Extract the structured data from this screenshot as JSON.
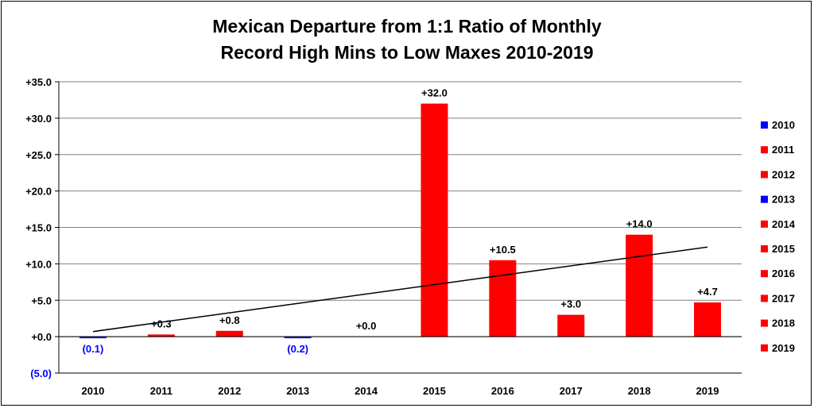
{
  "chart_data": {
    "type": "bar",
    "title_lines": [
      "Mexican Departure from 1:1 Ratio of Monthly",
      "Record High Mins to Low Maxes 2010-2019"
    ],
    "xlabel": "",
    "ylabel": "",
    "categories": [
      "2010",
      "2011",
      "2012",
      "2013",
      "2014",
      "2015",
      "2016",
      "2017",
      "2018",
      "2019"
    ],
    "values": [
      -0.1,
      0.3,
      0.8,
      -0.2,
      0.0,
      32.0,
      10.5,
      3.0,
      14.0,
      4.7
    ],
    "data_labels": [
      "(0.1)",
      "+0.3",
      "+0.8",
      "(0.2)",
      "+0.0",
      "+32.0",
      "+10.5",
      "+3.0",
      "+14.0",
      "+4.7"
    ],
    "ylim": [
      -5,
      35
    ],
    "y_ticks": [
      -5,
      0,
      5,
      10,
      15,
      20,
      25,
      30,
      35
    ],
    "y_tick_labels": [
      "(5.0)",
      "+0.0",
      "+5.0",
      "+10.0",
      "+15.0",
      "+20.0",
      "+25.0",
      "+30.0",
      "+35.0"
    ],
    "grid": true,
    "legend": {
      "position": "right",
      "entries": [
        "2010",
        "2011",
        "2012",
        "2013",
        "2014",
        "2015",
        "2016",
        "2017",
        "2018",
        "2019"
      ]
    },
    "trendline": {
      "type": "linear",
      "start": 0.7,
      "end": 12.3,
      "color": "#000000"
    },
    "colors": {
      "positive": "#ff0000",
      "negative": "#0000ff",
      "grid": "#808080",
      "negative_label": "#0000ff",
      "positive_label": "#000000"
    }
  }
}
